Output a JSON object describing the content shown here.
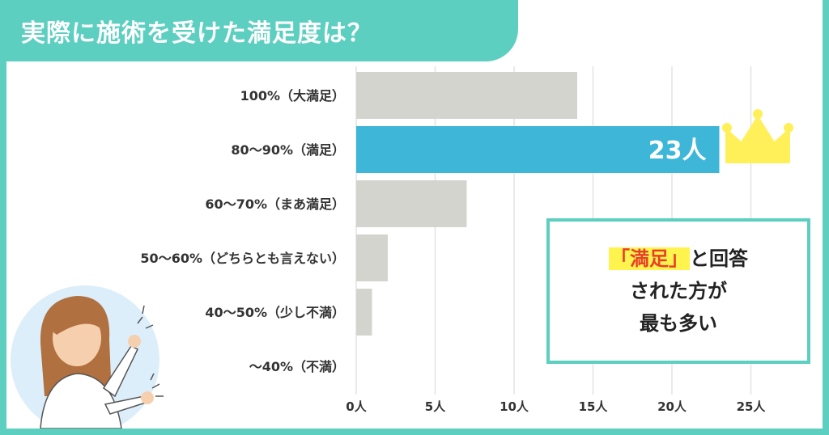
{
  "title": "実際に施術を受けた満足度は？",
  "chart_data": {
    "type": "bar",
    "orientation": "horizontal",
    "categories": [
      "100%（大満足）",
      "80〜90%（満足）",
      "60〜70%（まあ満足）",
      "50〜60%（どちらとも言えない）",
      "40〜50%（少し不満）",
      "〜40%（不満）"
    ],
    "values": [
      14,
      23,
      7,
      2,
      1,
      0
    ],
    "highlight_index": 1,
    "highlight_label": "23人",
    "ticks": [
      "0人",
      "5人",
      "10人",
      "15人",
      "20人",
      "25人"
    ],
    "tick_values": [
      0,
      5,
      10,
      15,
      20,
      25
    ],
    "xlim": [
      0,
      27
    ],
    "grid": true,
    "colors": {
      "bar": "#d4d4cf",
      "highlight": "#3db6d8",
      "grid": "#e3e3e3",
      "crown": "#fff05a"
    }
  },
  "callout": {
    "highlight": "「満足」",
    "line1_rest": "と回答",
    "line2": "された方が",
    "line3": "最も多い"
  },
  "icons": {
    "crown": "crown-icon",
    "person": "pointing-woman-illustration"
  }
}
